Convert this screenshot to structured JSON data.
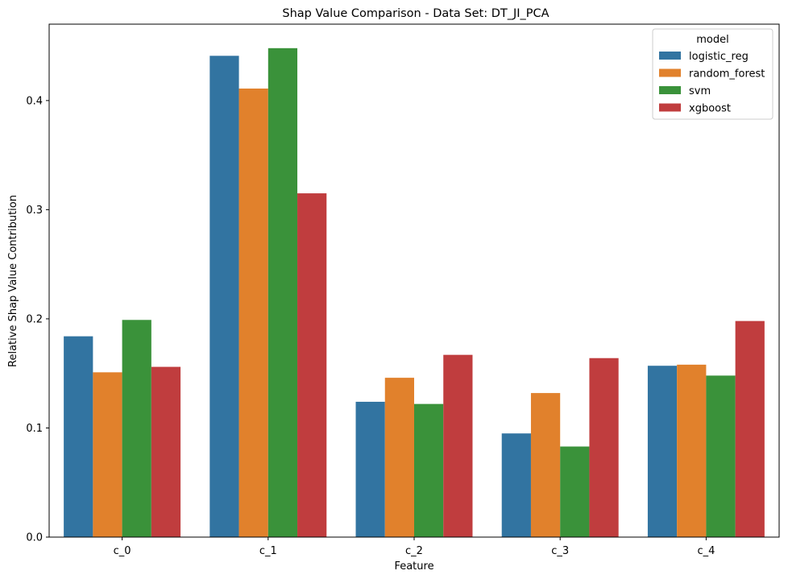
{
  "chart_data": {
    "type": "bar",
    "title": "Shap Value Comparison - Data Set: DT_JI_PCA",
    "xlabel": "Feature",
    "ylabel": "Relative Shap Value Contribution",
    "categories": [
      "c_0",
      "c_1",
      "c_2",
      "c_3",
      "c_4"
    ],
    "ylim": [
      0,
      0.47
    ],
    "yticks": [
      0.0,
      0.1,
      0.2,
      0.3,
      0.4
    ],
    "ytick_labels": [
      "0.0",
      "0.1",
      "0.2",
      "0.3",
      "0.4"
    ],
    "legend_title": "model",
    "legend_position": "top-right",
    "grid": false,
    "series": [
      {
        "name": "logistic_reg",
        "color": "#3274a1",
        "values": [
          0.184,
          0.441,
          0.124,
          0.095,
          0.157
        ]
      },
      {
        "name": "random_forest",
        "color": "#e1812c",
        "values": [
          0.151,
          0.411,
          0.146,
          0.132,
          0.158
        ]
      },
      {
        "name": "svm",
        "color": "#3a923a",
        "values": [
          0.199,
          0.448,
          0.122,
          0.083,
          0.148
        ]
      },
      {
        "name": "xgboost",
        "color": "#c03d3e",
        "values": [
          0.156,
          0.315,
          0.167,
          0.164,
          0.198
        ]
      }
    ]
  }
}
